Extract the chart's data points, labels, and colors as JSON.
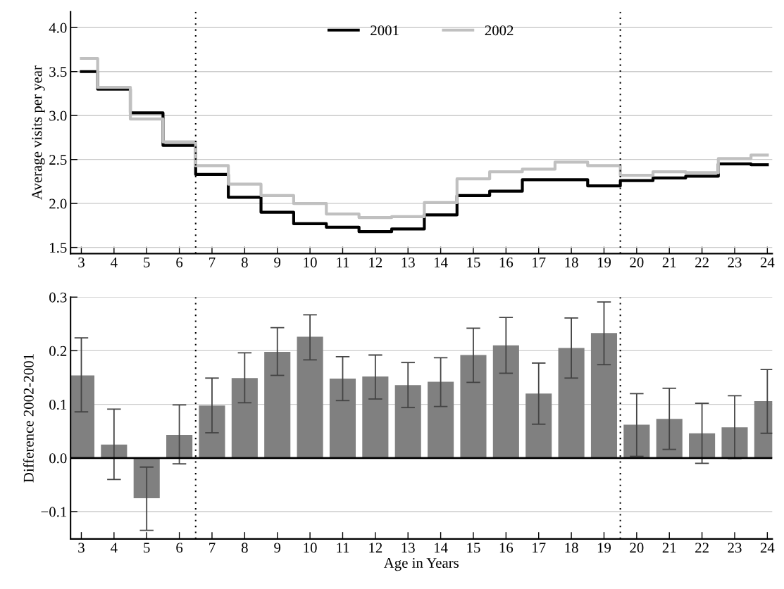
{
  "chart_data": [
    {
      "type": "step",
      "ylabel": "Average visits per year",
      "x": [
        3,
        4,
        5,
        6,
        7,
        8,
        9,
        10,
        11,
        12,
        13,
        14,
        15,
        16,
        17,
        18,
        19,
        20,
        21,
        22,
        23,
        24
      ],
      "series": [
        {
          "name": "2001",
          "color": "#000000",
          "values": [
            3.5,
            3.3,
            3.03,
            2.66,
            2.33,
            2.07,
            1.9,
            1.77,
            1.73,
            1.68,
            1.71,
            1.87,
            2.09,
            2.14,
            2.27,
            2.27,
            2.2,
            2.26,
            2.29,
            2.31,
            2.45,
            2.44
          ]
        },
        {
          "name": "2002",
          "color": "#c0c0c0",
          "values": [
            3.65,
            3.32,
            2.96,
            2.7,
            2.43,
            2.22,
            2.09,
            2.0,
            1.88,
            1.84,
            1.85,
            2.01,
            2.28,
            2.36,
            2.39,
            2.47,
            2.43,
            2.32,
            2.36,
            2.35,
            2.51,
            2.55
          ]
        }
      ],
      "xlim": [
        2.67,
        24.15
      ],
      "xticks": [
        3,
        4,
        5,
        6,
        7,
        8,
        9,
        10,
        11,
        12,
        13,
        14,
        15,
        16,
        17,
        18,
        19,
        20,
        21,
        22,
        23,
        24
      ],
      "ylim": [
        1.43,
        4.18
      ],
      "yticks": [
        {
          "value": 1.5,
          "label": "1.5"
        },
        {
          "value": 2.0,
          "label": "2.0"
        },
        {
          "value": 2.5,
          "label": "2.5"
        },
        {
          "value": 3.0,
          "label": "3.0"
        },
        {
          "value": 3.5,
          "label": "3.5"
        },
        {
          "value": 4.0,
          "label": "4.0"
        }
      ],
      "grid": "y",
      "legend": "top",
      "line_style": "solid",
      "ref_lines": [
        {
          "axis": "x",
          "value": 6.5,
          "color": "#000000",
          "line_style": "dotted"
        },
        {
          "axis": "x",
          "value": 19.5,
          "color": "#000000",
          "line_style": "dotted"
        }
      ]
    },
    {
      "type": "bar",
      "xlabel": "Age in Years",
      "ylabel": "Difference 2002-2001",
      "x": [
        3,
        4,
        5,
        6,
        7,
        8,
        9,
        10,
        11,
        12,
        13,
        14,
        15,
        16,
        17,
        18,
        19,
        20,
        21,
        22,
        23,
        24
      ],
      "values": [
        0.154,
        0.025,
        -0.075,
        0.043,
        0.098,
        0.149,
        0.198,
        0.226,
        0.148,
        0.152,
        0.136,
        0.142,
        0.192,
        0.21,
        0.12,
        0.205,
        0.233,
        0.062,
        0.073,
        0.046,
        0.057,
        0.106
      ],
      "errors": [
        [
          0.086,
          0.224
        ],
        [
          -0.04,
          0.091
        ],
        [
          -0.135,
          -0.017
        ],
        [
          -0.011,
          0.099
        ],
        [
          0.047,
          0.149
        ],
        [
          0.103,
          0.196
        ],
        [
          0.154,
          0.243
        ],
        [
          0.183,
          0.267
        ],
        [
          0.107,
          0.189
        ],
        [
          0.11,
          0.192
        ],
        [
          0.094,
          0.178
        ],
        [
          0.096,
          0.187
        ],
        [
          0.141,
          0.242
        ],
        [
          0.158,
          0.262
        ],
        [
          0.063,
          0.177
        ],
        [
          0.149,
          0.261
        ],
        [
          0.174,
          0.291
        ],
        [
          0.003,
          0.12
        ],
        [
          0.016,
          0.13
        ],
        [
          -0.01,
          0.102
        ],
        [
          -0.001,
          0.116
        ],
        [
          0.046,
          0.165
        ]
      ],
      "color": "#808080",
      "xlim": [
        2.67,
        24.15
      ],
      "xticks": [
        3,
        4,
        5,
        6,
        7,
        8,
        9,
        10,
        11,
        12,
        13,
        14,
        15,
        16,
        17,
        18,
        19,
        20,
        21,
        22,
        23,
        24
      ],
      "ylim": [
        -0.151,
        0.3
      ],
      "yticks": [
        {
          "value": -0.1,
          "label": "−0.1"
        },
        {
          "value": 0.0,
          "label": "0.0"
        },
        {
          "value": 0.1,
          "label": "0.1"
        },
        {
          "value": 0.2,
          "label": "0.2"
        },
        {
          "value": 0.3,
          "label": "0.3"
        }
      ],
      "grid": "y",
      "ref_lines": [
        {
          "axis": "x",
          "value": 6.5,
          "color": "#000000",
          "line_style": "dotted"
        },
        {
          "axis": "x",
          "value": 19.5,
          "color": "#000000",
          "line_style": "dotted"
        },
        {
          "axis": "y",
          "value": 0,
          "color": "#000000",
          "line_style": "solid"
        }
      ]
    }
  ]
}
